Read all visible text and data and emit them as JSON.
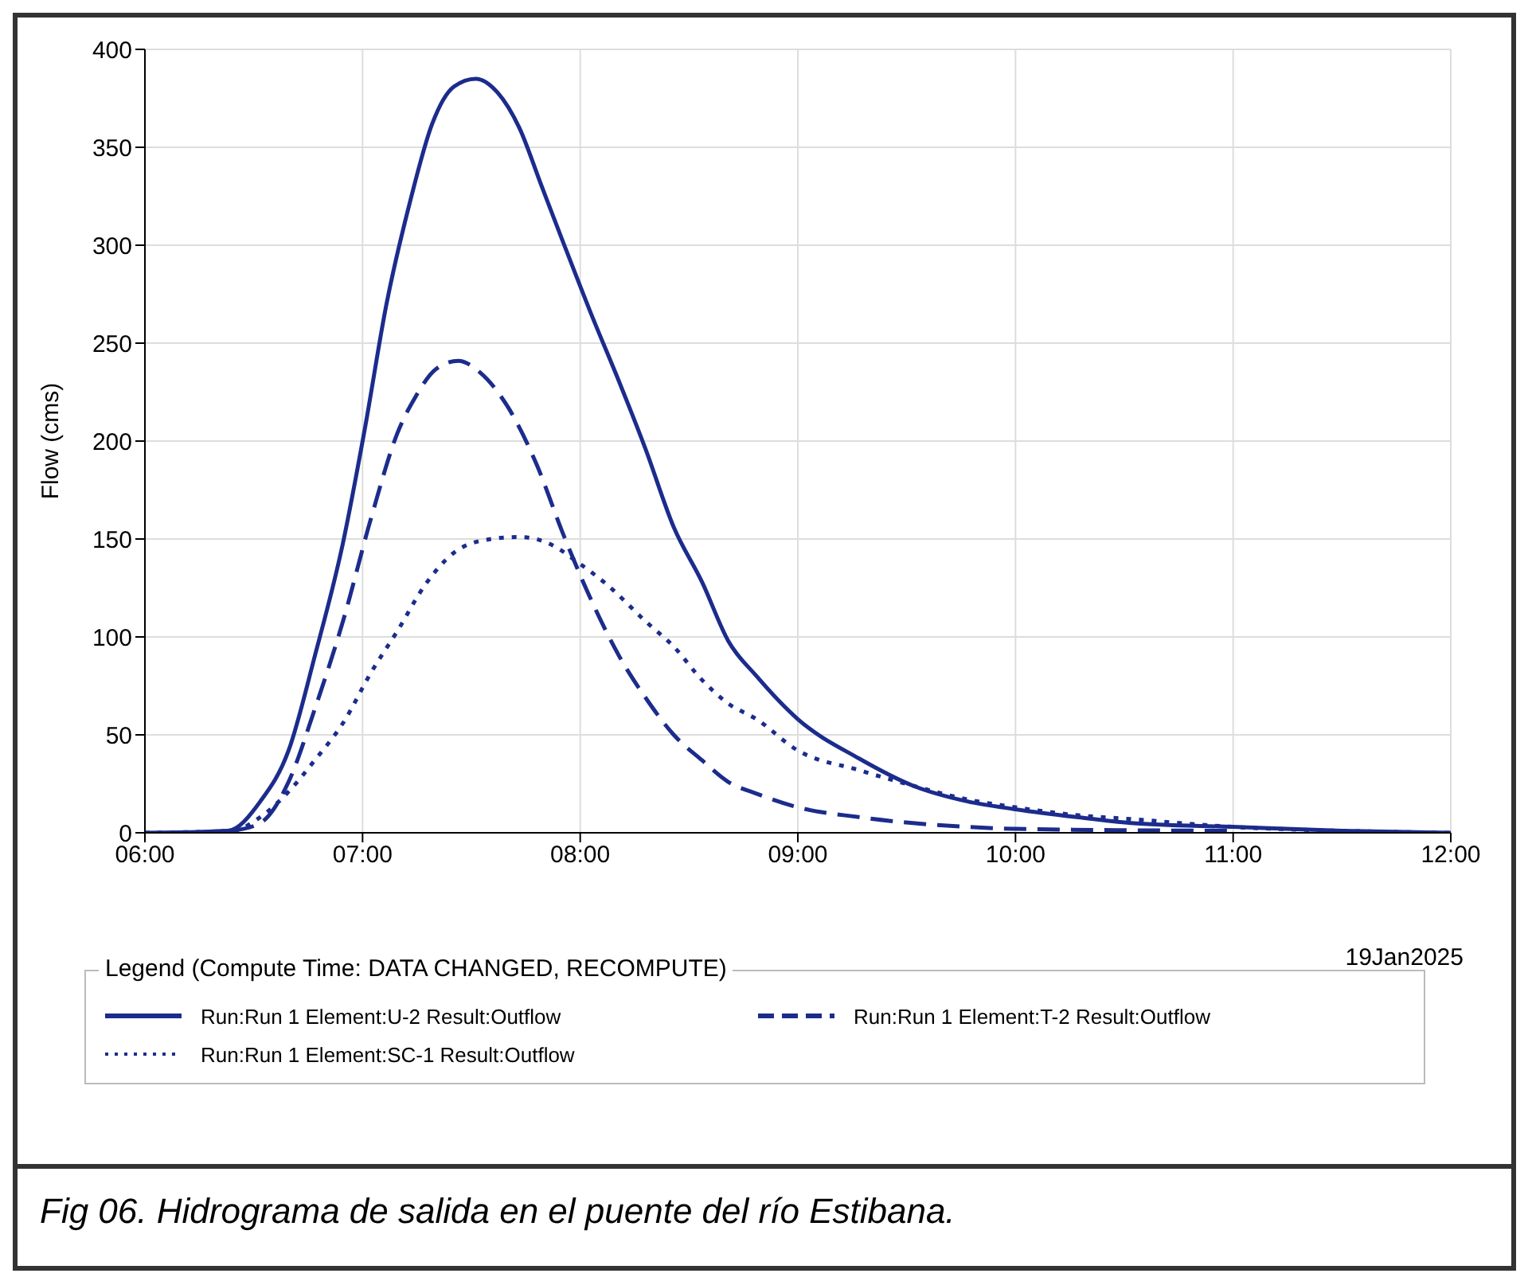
{
  "chart_data": {
    "type": "line",
    "ylabel": "Flow (cms)",
    "legend_title": "Legend (Compute Time: DATA CHANGED, RECOMPUTE)",
    "legend": "bottom",
    "grid": true,
    "marker": "none",
    "xlim": [
      6,
      12
    ],
    "xticks": [
      {
        "value": 6,
        "label": "06:00"
      },
      {
        "value": 7,
        "label": "07:00"
      },
      {
        "value": 8,
        "label": "08:00"
      },
      {
        "value": 9,
        "label": "09:00"
      },
      {
        "value": 10,
        "label": "10:00"
      },
      {
        "value": 11,
        "label": "11:00"
      },
      {
        "value": 12,
        "label": "12:00"
      }
    ],
    "ylim": [
      0,
      400
    ],
    "yticks": [
      0,
      50,
      100,
      150,
      200,
      250,
      300,
      350,
      400
    ],
    "annotations": [
      "19Jan2025",
      "Fig 06. Hidrograma de salida en el puente del río Estibana."
    ],
    "series": [
      {
        "name": "Run:Run 1 Element:U-2 Result:Outflow",
        "color": "#1c2c8c",
        "line_style": "solid",
        "x": [
          6,
          6.38,
          6.53,
          6.66,
          6.78,
          6.91,
          7.01,
          7.11,
          7.22,
          7.32,
          7.42,
          7.52,
          7.62,
          7.72,
          7.82,
          7.92,
          8.05,
          8.18,
          8.3,
          8.43,
          8.56,
          8.68,
          8.81,
          9.0,
          9.28,
          9.53,
          9.78,
          10.0,
          10.28,
          10.53,
          11.0,
          11.5,
          12
        ],
        "values": [
          0,
          1,
          16,
          42,
          90,
          148,
          206,
          270,
          323,
          362,
          381,
          385,
          378,
          360,
          331,
          302,
          265,
          230,
          196,
          156,
          128,
          98,
          80,
          58,
          38,
          24,
          16,
          12,
          8,
          5,
          3,
          1,
          0
        ]
      },
      {
        "name": "Run:Run 1 Element:T-2 Result:Outflow",
        "color": "#1c2c8c",
        "line_style": "dashed",
        "x": [
          6.4,
          6.53,
          6.66,
          6.78,
          6.91,
          7.04,
          7.16,
          7.24,
          7.34,
          7.44,
          7.54,
          7.67,
          7.8,
          7.92,
          8.05,
          8.18,
          8.3,
          8.43,
          8.56,
          8.68,
          8.81,
          9.0,
          9.28,
          9.78,
          10.0,
          11.0
        ],
        "values": [
          1,
          5,
          26,
          63,
          108,
          161,
          204,
          222,
          237,
          241,
          235,
          217,
          188,
          153,
          119,
          90,
          69,
          50,
          37,
          26,
          20,
          13,
          8,
          3,
          2,
          1
        ]
      },
      {
        "name": "Run:Run 1 Element:SC-1 Result:Outflow",
        "color": "#1c2c8c",
        "line_style": "dotted",
        "x": [
          6,
          6.4,
          6.53,
          6.66,
          6.78,
          6.91,
          7.04,
          7.16,
          7.29,
          7.42,
          7.54,
          7.72,
          7.87,
          7.99,
          8.12,
          8.3,
          8.43,
          8.56,
          8.68,
          8.81,
          9.0,
          9.28,
          9.53,
          9.78,
          10.0,
          10.28,
          10.53,
          11.0,
          11.5,
          12
        ],
        "values": [
          0,
          1,
          8,
          21,
          37,
          56,
          82,
          103,
          127,
          143,
          149,
          151,
          147,
          138,
          127,
          108,
          95,
          78,
          66,
          58,
          42,
          32,
          24,
          17,
          13,
          9,
          7,
          3,
          1,
          0
        ]
      }
    ]
  }
}
